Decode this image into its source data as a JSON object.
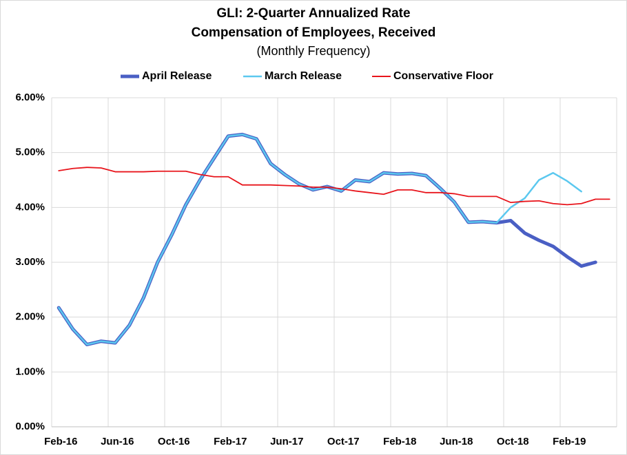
{
  "chart_data": {
    "type": "line",
    "title": [
      "GLI: 2-Quarter Annualized Rate",
      "Compensation of Employees, Received"
    ],
    "subtitle": "(Monthly Frequency)",
    "categories": [
      "Feb-16",
      null,
      null,
      null,
      "Jun-16",
      null,
      null,
      null,
      "Oct-16",
      null,
      null,
      null,
      "Feb-17",
      null,
      null,
      null,
      "Jun-17",
      null,
      null,
      null,
      "Oct-17",
      null,
      null,
      null,
      "Feb-18",
      null,
      null,
      null,
      "Jun-18",
      null,
      null,
      null,
      "Oct-18",
      null,
      null,
      null,
      "Feb-19",
      null,
      null,
      null
    ],
    "series": [
      {
        "name": "April Release",
        "color": "#4a5fc4",
        "width": 5,
        "values": [
          2.17,
          1.78,
          1.5,
          1.56,
          1.53,
          1.85,
          2.35,
          3.0,
          3.5,
          4.05,
          4.5,
          4.9,
          5.3,
          5.33,
          5.25,
          4.8,
          4.6,
          4.43,
          4.32,
          4.38,
          4.3,
          4.5,
          4.47,
          4.63,
          4.61,
          4.62,
          4.58,
          4.35,
          4.1,
          3.73,
          3.74,
          3.72,
          3.76,
          3.53,
          3.4,
          3.29,
          3.1,
          2.93,
          3.0,
          null
        ]
      },
      {
        "name": "March Release",
        "color": "#5bc8ef",
        "width": 2.5,
        "values": [
          2.17,
          1.78,
          1.5,
          1.56,
          1.53,
          1.85,
          2.35,
          3.0,
          3.5,
          4.05,
          4.5,
          4.9,
          5.3,
          5.33,
          5.25,
          4.8,
          4.6,
          4.43,
          4.32,
          4.38,
          4.3,
          4.5,
          4.47,
          4.63,
          4.61,
          4.62,
          4.58,
          4.35,
          4.1,
          3.73,
          3.74,
          3.72,
          4.0,
          4.17,
          4.5,
          4.63,
          4.48,
          4.29,
          null,
          null
        ]
      },
      {
        "name": "Conservative Floor",
        "color": "#e8141b",
        "width": 1.8,
        "values": [
          4.67,
          4.71,
          4.73,
          4.72,
          4.65,
          4.65,
          4.65,
          4.66,
          4.66,
          4.66,
          4.6,
          4.56,
          4.56,
          4.41,
          4.41,
          4.41,
          4.4,
          4.39,
          4.37,
          4.37,
          4.34,
          4.3,
          4.27,
          4.24,
          4.32,
          4.32,
          4.27,
          4.27,
          4.25,
          4.2,
          4.2,
          4.2,
          4.09,
          4.11,
          4.12,
          4.07,
          4.05,
          4.07,
          4.15,
          4.15
        ]
      }
    ],
    "ylim": [
      0,
      6
    ],
    "yticks": [
      {
        "value": 0,
        "label": "0.00%"
      },
      {
        "value": 1,
        "label": "1.00%"
      },
      {
        "value": 2,
        "label": "2.00%"
      },
      {
        "value": 3,
        "label": "3.00%"
      },
      {
        "value": 4,
        "label": "4.00%"
      },
      {
        "value": 5,
        "label": "5.00%"
      },
      {
        "value": 6,
        "label": "6.00%"
      }
    ],
    "grid": true,
    "legend": "top"
  }
}
